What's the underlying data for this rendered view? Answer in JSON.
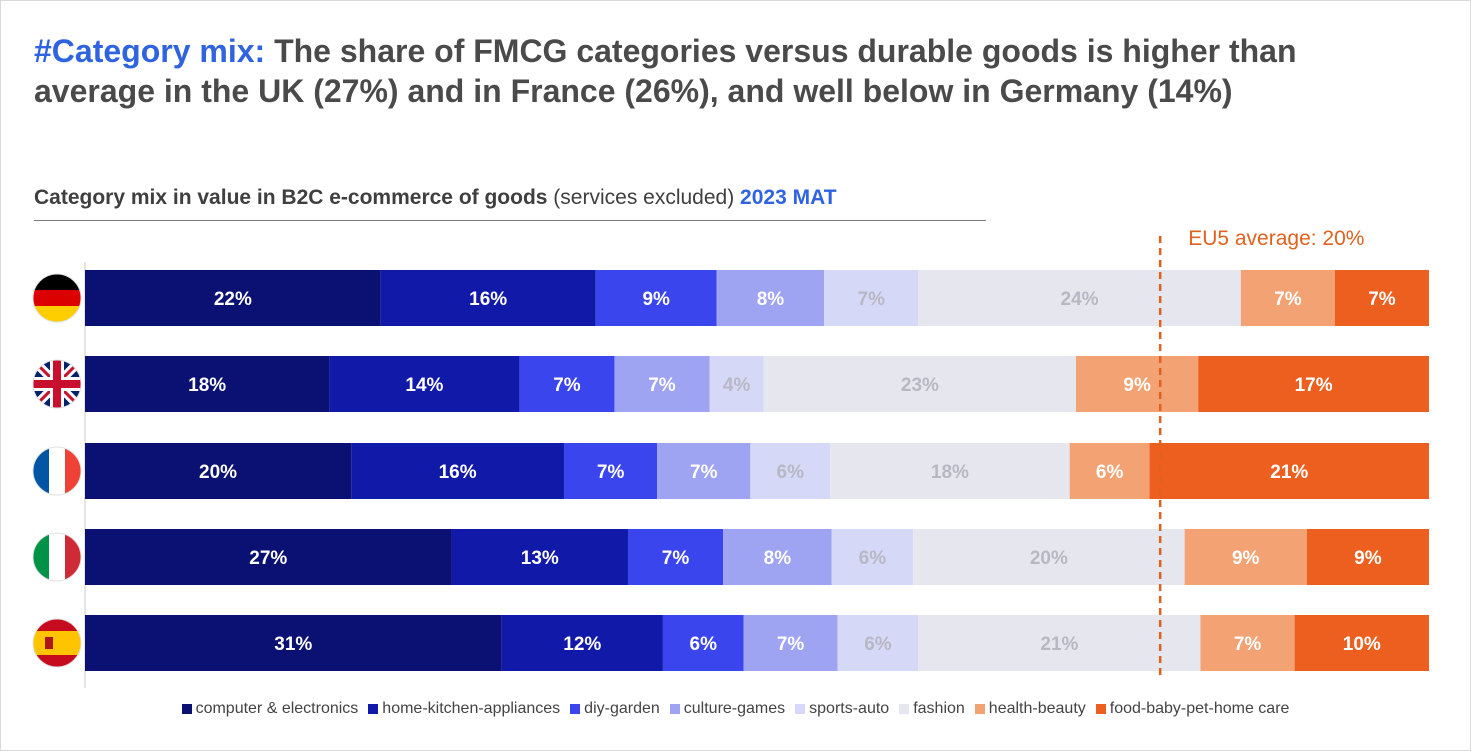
{
  "headline": {
    "tag": "#Category mix:",
    "text": " The share of FMCG categories versus durable goods is higher than average in the UK (27%) and in France (26%), and well below in Germany (14%)"
  },
  "subtitle": {
    "bold": "Category mix in value in B2C e-commerce of goods",
    "normal": " (services excluded) ",
    "period": "2023 MAT"
  },
  "colors": {
    "computer & electronics": "#0a1172",
    "home-kitchen-appliances": "#1119a8",
    "diy-garden": "#3a45ee",
    "culture-games": "#9ea3f2",
    "sports-auto": "#d6d8f8",
    "fashion": "#e6e6ee",
    "health-beauty": "#f2a273",
    "food-baby-pet-home care": "#ec5f1f",
    "reference_line": "#e0621e",
    "headline_accent": "#2f63e0"
  },
  "chart_data": {
    "type": "bar",
    "orientation": "horizontal",
    "stacked": true,
    "unit": "%",
    "categories": [
      "Germany",
      "UK",
      "France",
      "Italy",
      "Spain"
    ],
    "category_icons": [
      "flag-germany-icon",
      "flag-uk-icon",
      "flag-france-icon",
      "flag-italy-icon",
      "flag-spain-icon"
    ],
    "series": [
      {
        "name": "computer & electronics",
        "values": [
          22,
          18,
          20,
          27,
          31
        ]
      },
      {
        "name": "home-kitchen-appliances",
        "values": [
          16,
          14,
          16,
          13,
          12
        ]
      },
      {
        "name": "diy-garden",
        "values": [
          9,
          7,
          7,
          7,
          6
        ]
      },
      {
        "name": "culture-games",
        "values": [
          8,
          7,
          7,
          8,
          7
        ]
      },
      {
        "name": "sports-auto",
        "values": [
          7,
          4,
          6,
          6,
          6
        ]
      },
      {
        "name": "fashion",
        "values": [
          24,
          23,
          18,
          20,
          21
        ]
      },
      {
        "name": "health-beauty",
        "values": [
          7,
          9,
          6,
          9,
          7
        ]
      },
      {
        "name": "food-baby-pet-home care",
        "values": [
          7,
          17,
          21,
          9,
          10
        ]
      }
    ],
    "reference_line": {
      "label": "EU5 average: 20%",
      "value": 20,
      "measured_from": "right"
    },
    "xlim": [
      0,
      100
    ],
    "legend": "bottom",
    "grid": false
  }
}
